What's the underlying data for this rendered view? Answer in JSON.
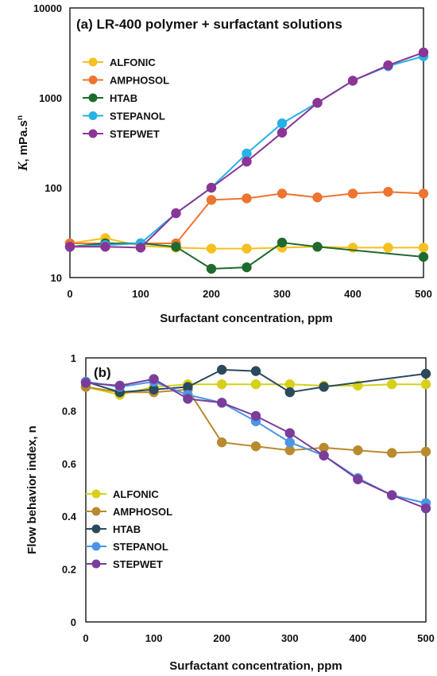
{
  "chart_data": [
    {
      "type": "line",
      "title": "(a) LR-400 polymer + surfactant solutions",
      "xlabel": "Surfactant concentration, ppm",
      "ylabel_main": "K",
      "ylabel_unit": ", mPa.s",
      "ylabel_exp": "n",
      "yscale": "log",
      "xlim": [
        0,
        500
      ],
      "ylim": [
        10,
        10000
      ],
      "xticks": [
        "0",
        "100",
        "200",
        "300",
        "400",
        "500"
      ],
      "yticks": [
        "10",
        "100",
        "1000",
        "10000"
      ],
      "legend_position": "upper-left",
      "x": [
        0,
        50,
        100,
        150,
        200,
        250,
        300,
        350,
        400,
        450,
        500
      ],
      "series": [
        {
          "name": "ALFONIC",
          "color": "#f5c020",
          "x": [
            0,
            50,
            100,
            150,
            200,
            250,
            300,
            350,
            400,
            450,
            500
          ],
          "values": [
            24,
            27.5,
            22.5,
            21.5,
            21,
            21,
            21.5,
            22,
            21.5,
            21.5,
            21.5
          ]
        },
        {
          "name": "AMPHOSOL",
          "color": "#ed7431",
          "x": [
            0,
            50,
            100,
            150,
            200,
            250,
            300,
            350,
            400,
            450,
            500
          ],
          "values": [
            24,
            24,
            24,
            24,
            73,
            76,
            86,
            78,
            86,
            90,
            86
          ]
        },
        {
          "name": "HTAB",
          "color": "#1f6b2e",
          "x": [
            0,
            50,
            100,
            150,
            200,
            250,
            300,
            350,
            500
          ],
          "values": [
            22,
            24,
            24,
            22,
            12.5,
            13,
            24.5,
            22,
            17
          ]
        },
        {
          "name": "STEPANOL",
          "color": "#25b2e6",
          "x": [
            0,
            50,
            100,
            150,
            200,
            250,
            300,
            350,
            400,
            450,
            500
          ],
          "values": [
            22,
            23,
            24,
            52,
            100,
            240,
            520,
            880,
            1550,
            2250,
            2900
          ]
        },
        {
          "name": "STEPWET",
          "color": "#8b3596",
          "x": [
            0,
            50,
            100,
            150,
            200,
            250,
            300,
            350,
            400,
            450,
            500
          ],
          "values": [
            22,
            22,
            21.5,
            52,
            100,
            195,
            410,
            880,
            1550,
            2300,
            3200
          ]
        }
      ]
    },
    {
      "type": "line",
      "title": "(b)",
      "xlabel": "Surfactant concentration, ppm",
      "ylabel": "Flow behavior index, n",
      "yscale": "linear",
      "xlim": [
        0,
        500
      ],
      "ylim": [
        0,
        1
      ],
      "xticks": [
        "0",
        "100",
        "200",
        "300",
        "400",
        "500"
      ],
      "yticks": [
        "0",
        "0.2",
        "0.4",
        "0.6",
        "0.8",
        "1"
      ],
      "legend_position": "lower-left",
      "x": [
        0,
        50,
        100,
        150,
        200,
        250,
        300,
        350,
        400,
        450,
        500
      ],
      "series": [
        {
          "name": "ALFONIC",
          "color": "#d6d018",
          "x": [
            0,
            50,
            100,
            150,
            200,
            250,
            300,
            350,
            400,
            450,
            500
          ],
          "values": [
            0.89,
            0.86,
            0.89,
            0.9,
            0.9,
            0.9,
            0.9,
            0.895,
            0.895,
            0.9,
            0.9
          ]
        },
        {
          "name": "AMPHOSOL",
          "color": "#b98a2e",
          "x": [
            0,
            50,
            100,
            150,
            200,
            250,
            300,
            350,
            400,
            450,
            500
          ],
          "values": [
            0.89,
            0.87,
            0.87,
            0.88,
            0.68,
            0.665,
            0.65,
            0.66,
            0.65,
            0.64,
            0.645
          ]
        },
        {
          "name": "HTAB",
          "color": "#2b4a5c",
          "x": [
            0,
            50,
            100,
            150,
            200,
            250,
            300,
            350,
            500
          ],
          "values": [
            0.91,
            0.87,
            0.88,
            0.89,
            0.955,
            0.95,
            0.87,
            0.89,
            0.94
          ]
        },
        {
          "name": "STEPANOL",
          "color": "#4b95e8",
          "x": [
            0,
            50,
            100,
            150,
            200,
            250,
            300,
            350,
            400,
            450,
            500
          ],
          "values": [
            0.91,
            0.89,
            0.91,
            0.86,
            0.83,
            0.76,
            0.68,
            0.63,
            0.545,
            0.48,
            0.45
          ]
        },
        {
          "name": "STEPWET",
          "color": "#7a3d9a",
          "x": [
            0,
            50,
            100,
            150,
            200,
            250,
            300,
            350,
            400,
            450,
            500
          ],
          "values": [
            0.905,
            0.895,
            0.92,
            0.845,
            0.83,
            0.78,
            0.715,
            0.63,
            0.54,
            0.48,
            0.43
          ]
        }
      ]
    }
  ]
}
